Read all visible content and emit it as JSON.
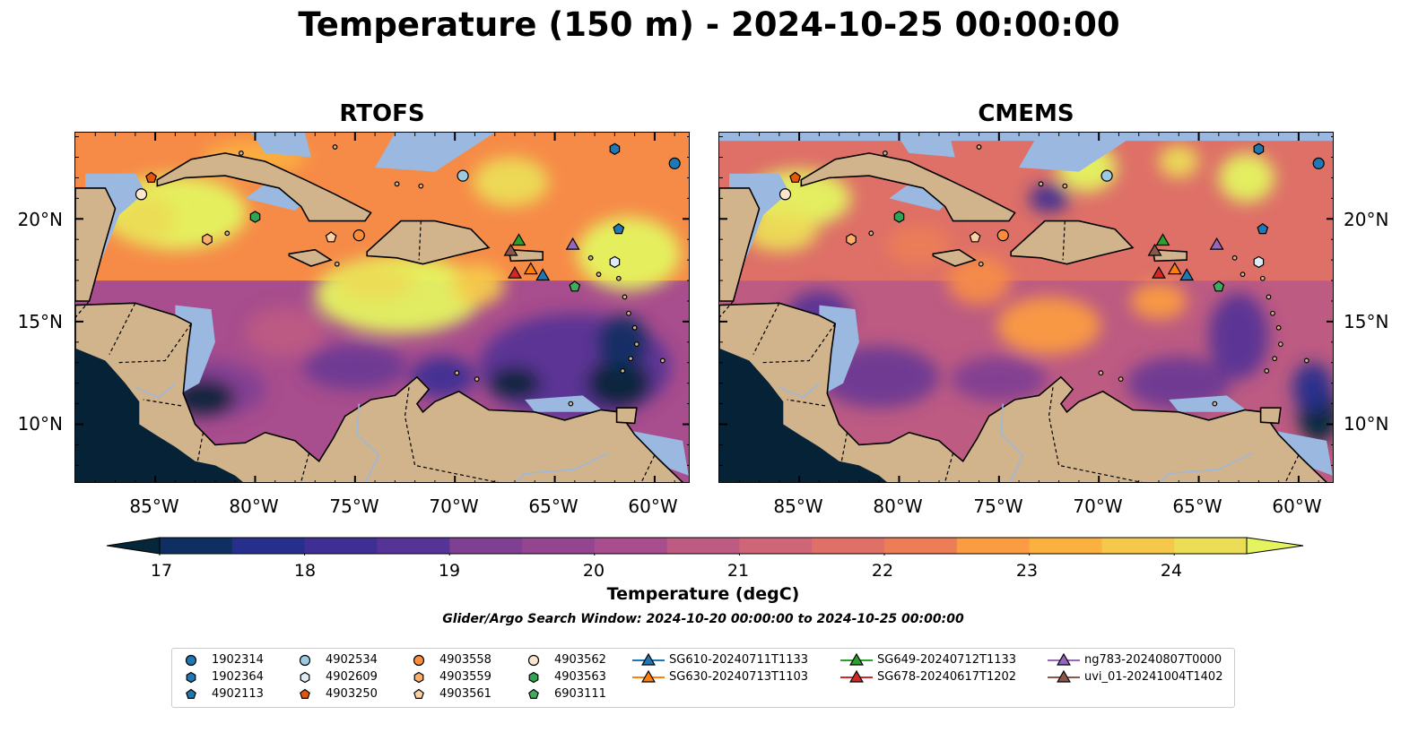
{
  "title": "Temperature (150 m) - 2024-10-25 00:00:00",
  "panels": [
    {
      "title": "RTOFS"
    },
    {
      "title": "CMEMS"
    }
  ],
  "axes": {
    "lon_ticks": [
      "85°W",
      "80°W",
      "75°W",
      "70°W",
      "65°W",
      "60°W"
    ],
    "lon_values": [
      -85,
      -80,
      -75,
      -70,
      -65,
      -60
    ],
    "lat_ticks": [
      "20°N",
      "15°N",
      "10°N"
    ],
    "lat_values": [
      20,
      15,
      10
    ],
    "lon_range": [
      -89,
      -58.2
    ],
    "lat_range": [
      7.1,
      24.2
    ]
  },
  "colorbar": {
    "label": "Temperature (degC)",
    "ticks": [
      "17",
      "18",
      "19",
      "20",
      "21",
      "22",
      "23",
      "24"
    ],
    "tick_values": [
      17,
      18,
      19,
      20,
      21,
      22,
      23,
      24
    ],
    "range": [
      17,
      24.5
    ],
    "extend": "both",
    "colors": [
      "#06263a",
      "#0f2f63",
      "#272f8c",
      "#3f2f94",
      "#563396",
      "#6b3994",
      "#7f3f92",
      "#934590",
      "#a84d8d",
      "#bd5b83",
      "#cf6677",
      "#de7068",
      "#ec7d56",
      "#f68b48",
      "#fb9c42",
      "#fbb040",
      "#f5c84c",
      "#ecdd56",
      "#e4f45f"
    ]
  },
  "search_window": "Glider/Argo Search Window: 2024-10-20 00:00:00 to 2024-10-25 00:00:00",
  "map_colors": {
    "land": "#d2b48c",
    "shelf": "#9ab8e0",
    "deep_hot": "#e4f45f"
  },
  "platforms": [
    {
      "name": "1902314",
      "marker": "circle",
      "color": "#1f77b4",
      "lon": -59.0,
      "lat": 22.7
    },
    {
      "name": "1902364",
      "marker": "hexagon",
      "color": "#1f77b4",
      "lon": -62.0,
      "lat": 23.4
    },
    {
      "name": "4902113",
      "marker": "pentagon",
      "color": "#1f77b4",
      "lon": -61.8,
      "lat": 19.5
    },
    {
      "name": "4902534",
      "marker": "circle",
      "color": "#9ecae1",
      "lon": -69.6,
      "lat": 22.1
    },
    {
      "name": "4902609",
      "marker": "hexagon",
      "color": "#deebf7",
      "lon": -62.0,
      "lat": 17.9
    },
    {
      "name": "4903250",
      "marker": "pentagon",
      "color": "#e6550d",
      "lon": -85.2,
      "lat": 22.0
    },
    {
      "name": "4903558",
      "marker": "circle",
      "color": "#fd8d3c",
      "lon": -74.8,
      "lat": 19.2
    },
    {
      "name": "4903559",
      "marker": "hexagon",
      "color": "#fdae6b",
      "lon": -82.4,
      "lat": 19.0
    },
    {
      "name": "4903561",
      "marker": "pentagon",
      "color": "#fdd0a2",
      "lon": -76.2,
      "lat": 19.1
    },
    {
      "name": "4903562",
      "marker": "circle",
      "color": "#fee6ce",
      "lon": -85.7,
      "lat": 21.2
    },
    {
      "name": "4903563",
      "marker": "hexagon",
      "color": "#31a354",
      "lon": -80.0,
      "lat": 20.1
    },
    {
      "name": "6903111",
      "marker": "pentagon",
      "color": "#41ab5d",
      "lon": -64.0,
      "lat": 16.7
    }
  ],
  "gliders": [
    {
      "name": "SG610-20240711T1133",
      "color": "#1f77b4",
      "lon": -65.6,
      "lat": 17.2
    },
    {
      "name": "SG630-20240713T1103",
      "color": "#ff7f0e",
      "lon": -66.2,
      "lat": 17.5
    },
    {
      "name": "SG649-20240712T1133",
      "color": "#2ca02c",
      "lon": -66.8,
      "lat": 18.9
    },
    {
      "name": "SG678-20240617T1202",
      "color": "#d62728",
      "lon": -67.0,
      "lat": 17.3
    },
    {
      "name": "ng783-20240807T0000",
      "color": "#9467bd",
      "lon": -64.1,
      "lat": 18.7
    },
    {
      "name": "uvi_01-20241004T1402",
      "color": "#8c564b",
      "lon": -67.2,
      "lat": 18.4
    }
  ]
}
